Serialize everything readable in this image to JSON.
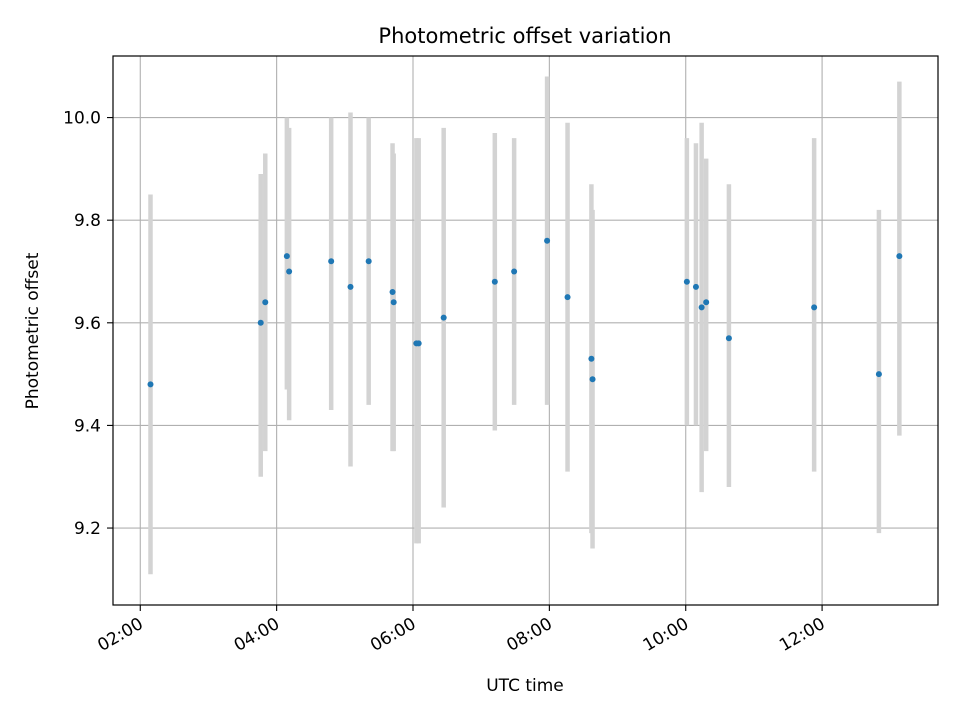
{
  "chart_data": {
    "type": "scatter",
    "title": "Photometric offset variation",
    "xlabel": "UTC time",
    "ylabel": "Photometric offset",
    "x_unit": "UTC time (HH:MM)",
    "xlim": [
      "01:36",
      "13:42"
    ],
    "ylim": [
      9.05,
      10.12
    ],
    "x_ticks": [
      "02:00",
      "04:00",
      "06:00",
      "08:00",
      "10:00",
      "12:00"
    ],
    "y_ticks": [
      9.2,
      9.4,
      9.6,
      9.8,
      10.0
    ],
    "y_tick_labels": [
      "9.2",
      "9.4",
      "9.6",
      "9.8",
      "10.0"
    ],
    "grid": true,
    "point_color": "#1f77b4",
    "errorbar_color": "#d3d3d3",
    "points": [
      {
        "x": "02:09",
        "y": 9.48,
        "ylow": 9.11,
        "yhigh": 9.85
      },
      {
        "x": "03:46",
        "y": 9.6,
        "ylow": 9.3,
        "yhigh": 9.89
      },
      {
        "x": "03:50",
        "y": 9.64,
        "ylow": 9.35,
        "yhigh": 9.93
      },
      {
        "x": "04:09",
        "y": 9.73,
        "ylow": 9.47,
        "yhigh": 10.0
      },
      {
        "x": "04:11",
        "y": 9.7,
        "ylow": 9.41,
        "yhigh": 9.98
      },
      {
        "x": "04:48",
        "y": 9.72,
        "ylow": 9.43,
        "yhigh": 10.0
      },
      {
        "x": "05:05",
        "y": 9.67,
        "ylow": 9.32,
        "yhigh": 10.01
      },
      {
        "x": "05:21",
        "y": 9.72,
        "ylow": 9.44,
        "yhigh": 10.0
      },
      {
        "x": "05:42",
        "y": 9.66,
        "ylow": 9.35,
        "yhigh": 9.95
      },
      {
        "x": "05:43",
        "y": 9.64,
        "ylow": 9.35,
        "yhigh": 9.93
      },
      {
        "x": "06:03",
        "y": 9.56,
        "ylow": 9.17,
        "yhigh": 9.96
      },
      {
        "x": "06:05",
        "y": 9.56,
        "ylow": 9.17,
        "yhigh": 9.96
      },
      {
        "x": "06:27",
        "y": 9.61,
        "ylow": 9.24,
        "yhigh": 9.98
      },
      {
        "x": "07:12",
        "y": 9.68,
        "ylow": 9.39,
        "yhigh": 9.97
      },
      {
        "x": "07:29",
        "y": 9.7,
        "ylow": 9.44,
        "yhigh": 9.96
      },
      {
        "x": "07:58",
        "y": 9.76,
        "ylow": 9.44,
        "yhigh": 10.08
      },
      {
        "x": "08:16",
        "y": 9.65,
        "ylow": 9.31,
        "yhigh": 9.99
      },
      {
        "x": "08:37",
        "y": 9.53,
        "ylow": 9.19,
        "yhigh": 9.87
      },
      {
        "x": "08:38",
        "y": 9.49,
        "ylow": 9.16,
        "yhigh": 9.82
      },
      {
        "x": "10:01",
        "y": 9.68,
        "ylow": 9.4,
        "yhigh": 9.96
      },
      {
        "x": "10:09",
        "y": 9.67,
        "ylow": 9.4,
        "yhigh": 9.95
      },
      {
        "x": "10:14",
        "y": 9.63,
        "ylow": 9.27,
        "yhigh": 9.99
      },
      {
        "x": "10:18",
        "y": 9.64,
        "ylow": 9.35,
        "yhigh": 9.92
      },
      {
        "x": "10:38",
        "y": 9.57,
        "ylow": 9.28,
        "yhigh": 9.87
      },
      {
        "x": "11:53",
        "y": 9.63,
        "ylow": 9.31,
        "yhigh": 9.96
      },
      {
        "x": "12:50",
        "y": 9.5,
        "ylow": 9.19,
        "yhigh": 9.82
      },
      {
        "x": "13:08",
        "y": 9.73,
        "ylow": 9.38,
        "yhigh": 10.07
      }
    ]
  }
}
